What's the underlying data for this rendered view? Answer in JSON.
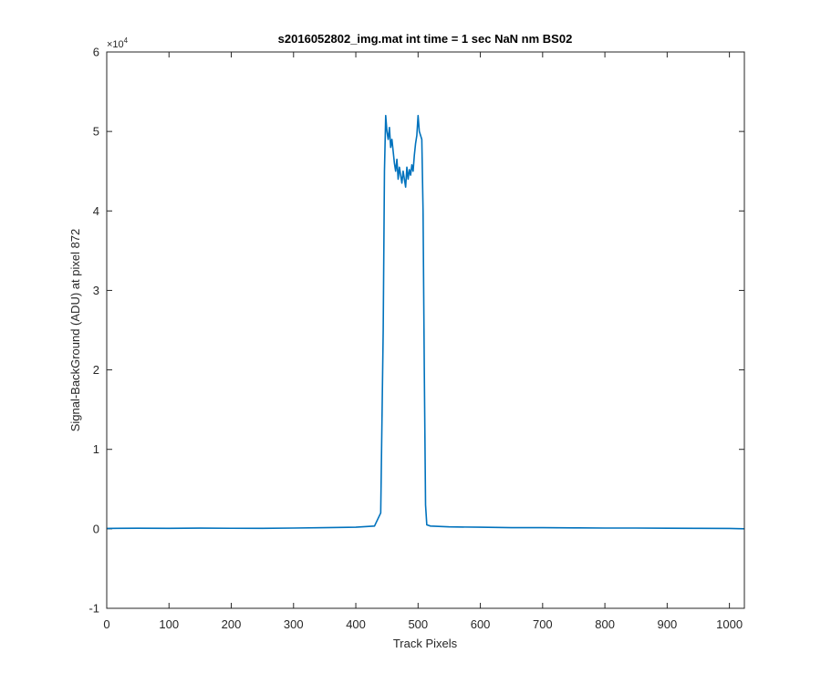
{
  "chart_data": {
    "type": "line",
    "title": "s2016052802_img.mat int time = 1 sec  NaN nm BS02",
    "xlabel": "Track Pixels",
    "ylabel": "Signal-BackGround (ADU) at pixel 872",
    "y_multiplier_label": "×10",
    "y_multiplier_exp": "4",
    "xlim": [
      0,
      1024
    ],
    "ylim": [
      -10000,
      60000
    ],
    "x_ticks": [
      0,
      100,
      200,
      300,
      400,
      500,
      600,
      700,
      800,
      900,
      1000
    ],
    "y_ticks": [
      -1,
      0,
      1,
      2,
      3,
      4,
      5,
      6
    ],
    "y_tick_scale": 10000,
    "grid": false,
    "series_color": "#0072BD",
    "series": [
      {
        "x": [
          0,
          50,
          100,
          150,
          200,
          250,
          300,
          350,
          400,
          430,
          440,
          444,
          446,
          448,
          450,
          452,
          454,
          456,
          458,
          460,
          462,
          464,
          466,
          468,
          470,
          472,
          474,
          476,
          478,
          480,
          482,
          484,
          486,
          488,
          490,
          492,
          494,
          496,
          498,
          500,
          502,
          504,
          506,
          508,
          510,
          512,
          514,
          520,
          550,
          600,
          650,
          700,
          750,
          800,
          850,
          900,
          950,
          1000,
          1024
        ],
        "y": [
          50,
          80,
          60,
          90,
          70,
          60,
          100,
          150,
          200,
          350,
          2000,
          25000,
          45000,
          52000,
          50000,
          49000,
          50500,
          48000,
          49000,
          47500,
          46000,
          45000,
          46500,
          44000,
          45500,
          44500,
          43500,
          45000,
          44000,
          43000,
          45500,
          44000,
          45200,
          44500,
          45800,
          45000,
          47000,
          48500,
          49500,
          52000,
          50000,
          49500,
          49000,
          40000,
          20000,
          3000,
          500,
          350,
          250,
          200,
          150,
          150,
          120,
          100,
          100,
          80,
          60,
          50,
          0
        ]
      }
    ]
  }
}
